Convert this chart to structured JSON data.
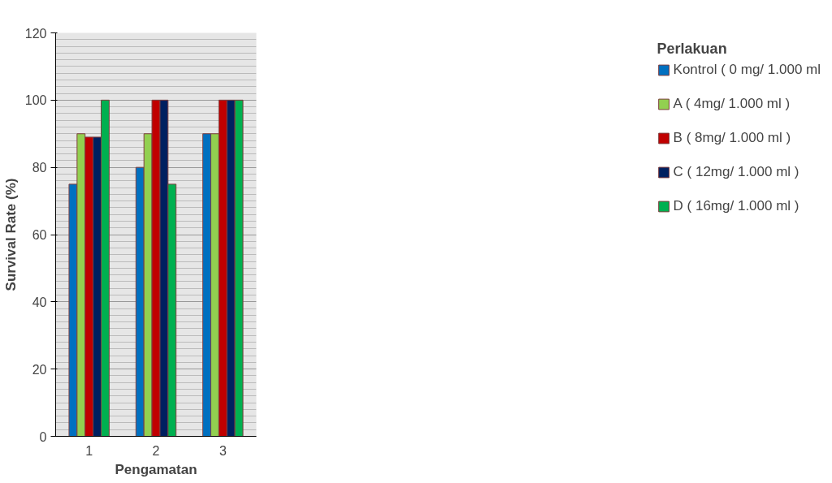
{
  "chart_data": {
    "type": "bar",
    "xlabel": "Pengamatan",
    "ylabel": "Survival Rate (%)",
    "legend_title": "Perlakuan",
    "categories": [
      "1",
      "2",
      "3"
    ],
    "series": [
      {
        "name": "Kontrol ( 0 mg/ 1.000 ml",
        "color": "#0070c0",
        "values": [
          75,
          80,
          90
        ]
      },
      {
        "name": "A ( 4mg/ 1.000 ml )",
        "color": "#92d050",
        "values": [
          90,
          90,
          90
        ]
      },
      {
        "name": "B ( 8mg/ 1.000 ml )",
        "color": "#c00000",
        "values": [
          89,
          100,
          100
        ]
      },
      {
        "name": "C ( 12mg/ 1.000 ml )",
        "color": "#002060",
        "values": [
          89,
          100,
          100
        ]
      },
      {
        "name": "D ( 16mg/ 1.000 ml )",
        "color": "#00b050",
        "values": [
          100,
          75,
          100
        ]
      }
    ],
    "ylim": [
      0,
      120
    ],
    "yticks": [
      0,
      20,
      40,
      60,
      80,
      100,
      120
    ],
    "grid": "y",
    "legend": "right"
  }
}
